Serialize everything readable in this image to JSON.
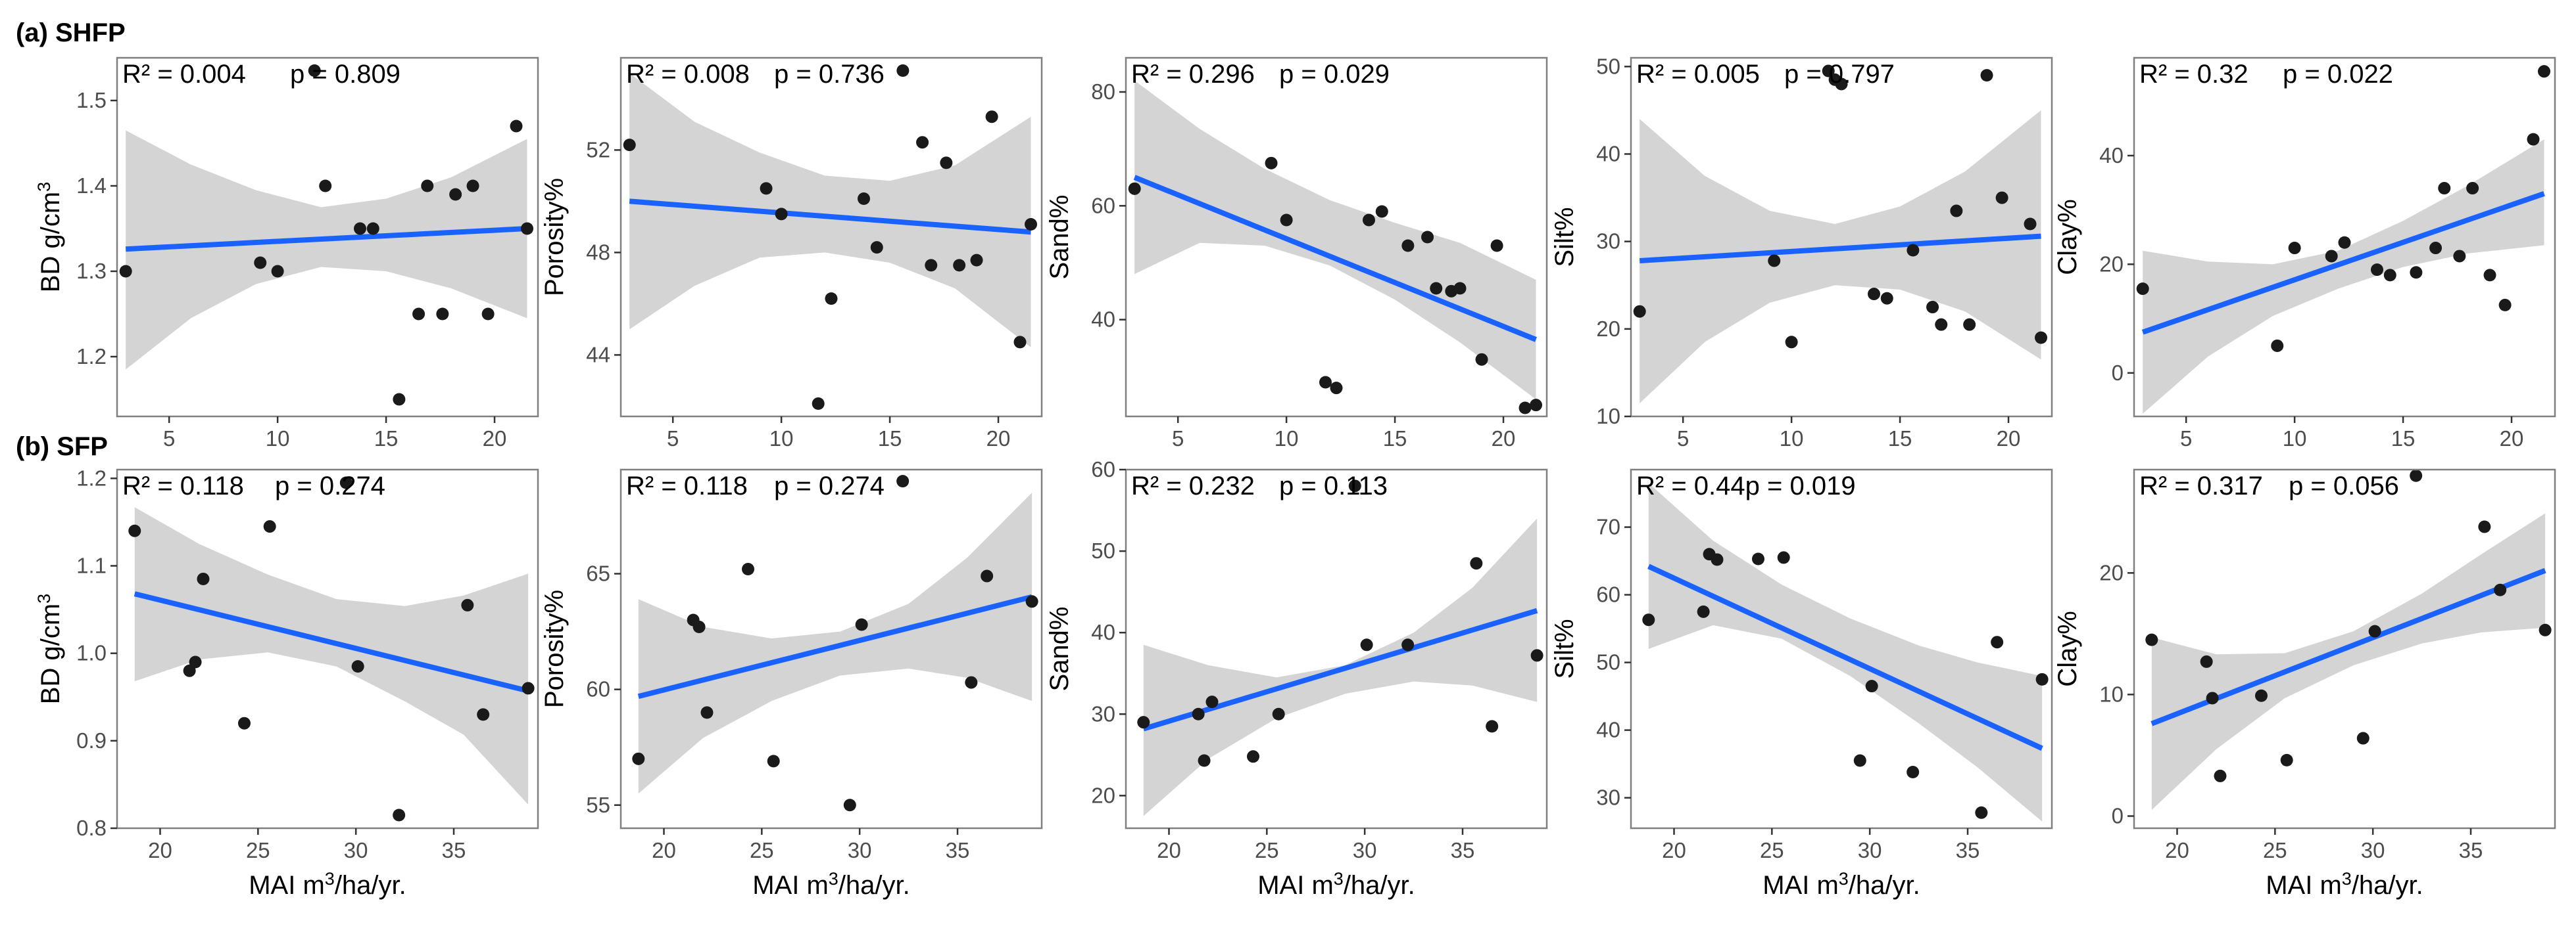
{
  "rows": [
    {
      "label": "(a) SHFP"
    },
    {
      "label": "(b) SFP"
    }
  ],
  "x_axis_label_prefix": "MAI m",
  "x_axis_label_sup": "3",
  "x_axis_label_suffix": "/ha/yr.",
  "chart_data": [
    {
      "type": "scatter",
      "row": 0,
      "col": 0,
      "ylabel": "BD g/cm",
      "ylabel_sup": "3",
      "r2_text": "R² = 0.004",
      "p_text": "p = 0.809",
      "xlim": [
        2.6,
        22.0
      ],
      "ylim": [
        1.13,
        1.55
      ],
      "xticks": [
        5,
        10,
        15,
        20
      ],
      "xtick_labels": [
        "5",
        "10",
        "15",
        "20"
      ],
      "yticks": [
        1.2,
        1.3,
        1.4,
        1.5
      ],
      "ytick_labels": [
        "1.2",
        "1.3",
        "1.4",
        "1.5"
      ],
      "fit": {
        "x": [
          3.0,
          21.5
        ],
        "y": [
          1.326,
          1.35
        ]
      },
      "band": {
        "x": [
          3.0,
          6.0,
          9.0,
          12.0,
          15.0,
          18.0,
          21.5
        ],
        "lower": [
          1.185,
          1.245,
          1.285,
          1.305,
          1.3,
          1.28,
          1.245
        ],
        "upper": [
          1.465,
          1.425,
          1.395,
          1.375,
          1.385,
          1.41,
          1.455
        ]
      },
      "points": {
        "x": [
          3.0,
          9.2,
          10.0,
          11.7,
          12.2,
          13.8,
          14.4,
          15.6,
          16.5,
          16.9,
          17.6,
          18.2,
          19.0,
          19.7,
          21.0,
          21.5
        ],
        "y": [
          1.3,
          1.31,
          1.3,
          1.535,
          1.4,
          1.35,
          1.35,
          1.15,
          1.25,
          1.4,
          1.25,
          1.39,
          1.4,
          1.25,
          1.47,
          1.35
        ]
      }
    },
    {
      "type": "scatter",
      "row": 0,
      "col": 1,
      "ylabel": "Porosity%",
      "ylabel_sup": "",
      "r2_text": "R² = 0.008",
      "p_text": "p = 0.736",
      "xlim": [
        2.6,
        22.0
      ],
      "ylim": [
        41.6,
        55.6
      ],
      "xticks": [
        5,
        10,
        15,
        20
      ],
      "xtick_labels": [
        "5",
        "10",
        "15",
        "20"
      ],
      "yticks": [
        44,
        48,
        52
      ],
      "ytick_labels": [
        "44",
        "48",
        "52"
      ],
      "fit": {
        "x": [
          3.0,
          21.5
        ],
        "y": [
          50.0,
          48.8
        ]
      },
      "band": {
        "x": [
          3.0,
          6.0,
          9.0,
          12.0,
          15.0,
          18.0,
          21.5
        ],
        "lower": [
          45.0,
          46.7,
          47.8,
          48.0,
          47.6,
          46.6,
          44.3
        ],
        "upper": [
          55.0,
          53.1,
          51.9,
          51.0,
          50.8,
          51.4,
          53.3
        ]
      },
      "points": {
        "x": [
          3.0,
          9.3,
          10.0,
          11.7,
          12.3,
          13.8,
          14.4,
          15.6,
          16.5,
          16.9,
          17.6,
          18.2,
          19.0,
          19.7,
          21.0,
          21.5
        ],
        "y": [
          52.2,
          50.5,
          49.5,
          42.1,
          46.2,
          50.1,
          48.2,
          55.1,
          52.3,
          47.5,
          51.5,
          47.5,
          47.7,
          53.3,
          44.5,
          49.1
        ]
      }
    },
    {
      "type": "scatter",
      "row": 0,
      "col": 2,
      "ylabel": "Sand%",
      "ylabel_sup": "",
      "r2_text": "R² = 0.296",
      "p_text": "p = 0.029",
      "xlim": [
        2.6,
        22.0
      ],
      "ylim": [
        23.0,
        86.0
      ],
      "xticks": [
        5,
        10,
        15,
        20
      ],
      "xtick_labels": [
        "5",
        "10",
        "15",
        "20"
      ],
      "yticks": [
        40,
        60,
        80
      ],
      "ytick_labels": [
        "40",
        "60",
        "80"
      ],
      "fit": {
        "x": [
          3.0,
          21.5
        ],
        "y": [
          65.0,
          36.5
        ]
      },
      "band": {
        "x": [
          3.0,
          6.0,
          9.0,
          12.0,
          15.0,
          18.0,
          21.5
        ],
        "lower": [
          48.0,
          53.5,
          53.0,
          49.5,
          43.5,
          36.0,
          26.0
        ],
        "upper": [
          82.0,
          73.5,
          66.5,
          61.0,
          57.0,
          53.5,
          47.0
        ]
      },
      "points": {
        "x": [
          3.0,
          9.3,
          10.0,
          11.8,
          12.3,
          13.8,
          14.4,
          15.6,
          16.5,
          16.9,
          17.6,
          18.0,
          19.0,
          19.7,
          21.0,
          21.5
        ],
        "y": [
          63.0,
          67.5,
          57.5,
          29.0,
          28.0,
          57.5,
          59.0,
          53.0,
          54.5,
          45.5,
          45.0,
          45.5,
          33.0,
          53.0,
          24.5,
          25.0
        ]
      }
    },
    {
      "type": "scatter",
      "row": 0,
      "col": 3,
      "ylabel": "Silt%",
      "ylabel_sup": "",
      "r2_text": "R² = 0.005",
      "p_text": "p = 0.797",
      "xlim": [
        2.6,
        22.0
      ],
      "ylim": [
        10.0,
        51.0
      ],
      "xticks": [
        5,
        10,
        15,
        20
      ],
      "xtick_labels": [
        "5",
        "10",
        "15",
        "20"
      ],
      "yticks": [
        10,
        20,
        30,
        40,
        50
      ],
      "ytick_labels": [
        "10",
        "20",
        "30",
        "40",
        "50"
      ],
      "fit": {
        "x": [
          3.0,
          21.5
        ],
        "y": [
          27.8,
          30.6
        ]
      },
      "band": {
        "x": [
          3.0,
          6.0,
          9.0,
          12.0,
          15.0,
          18.0,
          21.5
        ],
        "lower": [
          11.5,
          18.5,
          23.0,
          25.0,
          24.5,
          22.0,
          16.5
        ],
        "upper": [
          44.0,
          37.5,
          33.5,
          32.0,
          34.0,
          38.0,
          45.0
        ]
      },
      "points": {
        "x": [
          3.0,
          9.2,
          10.0,
          11.7,
          12.0,
          12.3,
          13.8,
          14.4,
          15.6,
          16.5,
          16.9,
          17.6,
          18.2,
          19.0,
          19.7,
          21.0,
          21.5
        ],
        "y": [
          22.0,
          27.8,
          18.5,
          49.5,
          48.5,
          48.0,
          24.0,
          23.5,
          29.0,
          22.5,
          20.5,
          33.5,
          20.5,
          49.0,
          35.0,
          32.0,
          19.0
        ]
      }
    },
    {
      "type": "scatter",
      "row": 0,
      "col": 4,
      "ylabel": "Clay%",
      "ylabel_sup": "",
      "r2_text": "R² = 0.32",
      "p_text": "p = 0.022",
      "xlim": [
        2.6,
        22.0
      ],
      "ylim": [
        -8.0,
        58.0
      ],
      "xticks": [
        5,
        10,
        15,
        20
      ],
      "xtick_labels": [
        "5",
        "10",
        "15",
        "20"
      ],
      "yticks": [
        0,
        20,
        40
      ],
      "ytick_labels": [
        "0",
        "20",
        "40"
      ],
      "fit": {
        "x": [
          3.0,
          21.5
        ],
        "y": [
          7.5,
          33.0
        ]
      },
      "band": {
        "x": [
          3.0,
          6.0,
          9.0,
          12.0,
          15.0,
          18.0,
          21.5
        ],
        "lower": [
          -7.5,
          3.0,
          10.5,
          15.5,
          19.5,
          22.0,
          23.5
        ],
        "upper": [
          22.5,
          20.5,
          20.0,
          22.5,
          28.0,
          34.5,
          43.0
        ]
      },
      "points": {
        "x": [
          3.0,
          9.2,
          10.0,
          11.7,
          12.3,
          13.8,
          14.4,
          15.6,
          16.5,
          16.9,
          17.6,
          18.2,
          19.0,
          19.7,
          21.0,
          21.5
        ],
        "y": [
          15.5,
          5.0,
          23.0,
          21.5,
          24.0,
          19.0,
          18.0,
          18.5,
          23.0,
          34.0,
          21.5,
          34.0,
          18.0,
          12.5,
          43.0,
          55.5
        ]
      }
    },
    {
      "type": "scatter",
      "row": 1,
      "col": 0,
      "ylabel": "BD g/cm",
      "ylabel_sup": "3",
      "r2_text": "R² = 0.118",
      "p_text": "p = 0.274",
      "xlim": [
        17.8,
        39.3
      ],
      "ylim": [
        0.8,
        1.21
      ],
      "xticks": [
        20,
        25,
        30,
        35
      ],
      "xtick_labels": [
        "20",
        "25",
        "30",
        "35"
      ],
      "yticks": [
        0.8,
        0.9,
        1.0,
        1.1,
        1.2
      ],
      "ytick_labels": [
        "0.8",
        "0.9",
        "1.0",
        "1.1",
        "1.2"
      ],
      "fit": {
        "x": [
          18.7,
          38.8
        ],
        "y": [
          1.068,
          0.957
        ]
      },
      "band": {
        "x": [
          18.7,
          22.0,
          25.5,
          29.0,
          32.5,
          35.5,
          38.8
        ],
        "lower": [
          0.968,
          0.993,
          1.001,
          0.985,
          0.945,
          0.907,
          0.827
        ],
        "upper": [
          1.167,
          1.125,
          1.09,
          1.062,
          1.054,
          1.066,
          1.091
        ]
      },
      "points": {
        "x": [
          18.7,
          21.5,
          21.8,
          22.2,
          24.3,
          25.6,
          29.5,
          30.1,
          32.2,
          35.7,
          36.5,
          38.8
        ],
        "y": [
          1.14,
          0.98,
          0.99,
          1.085,
          0.92,
          1.145,
          1.195,
          0.985,
          0.815,
          1.055,
          0.93,
          0.96
        ]
      }
    },
    {
      "type": "scatter",
      "row": 1,
      "col": 1,
      "ylabel": "Porosity%",
      "ylabel_sup": "",
      "r2_text": "R² = 0.118",
      "p_text": "p = 0.274",
      "xlim": [
        17.8,
        39.3
      ],
      "ylim": [
        54.0,
        69.5
      ],
      "xticks": [
        20,
        25,
        30,
        35
      ],
      "xtick_labels": [
        "20",
        "25",
        "30",
        "35"
      ],
      "yticks": [
        55,
        60,
        65
      ],
      "ytick_labels": [
        "55",
        "60",
        "65"
      ],
      "fit": {
        "x": [
          18.7,
          38.8
        ],
        "y": [
          59.7,
          64.0
        ]
      },
      "band": {
        "x": [
          18.7,
          22.0,
          25.5,
          29.0,
          32.5,
          35.5,
          38.8
        ],
        "lower": [
          55.5,
          57.9,
          59.5,
          60.6,
          60.9,
          60.5,
          59.5
        ],
        "upper": [
          63.9,
          62.7,
          62.2,
          62.5,
          63.7,
          65.7,
          68.5
        ]
      },
      "points": {
        "x": [
          18.7,
          21.5,
          21.8,
          22.2,
          24.3,
          25.6,
          29.5,
          30.1,
          32.2,
          35.7,
          36.5,
          38.8
        ],
        "y": [
          57.0,
          63.0,
          62.7,
          59.0,
          65.2,
          56.9,
          55.0,
          62.8,
          69.0,
          60.3,
          64.9,
          63.8
        ]
      }
    },
    {
      "type": "scatter",
      "row": 1,
      "col": 2,
      "ylabel": "Sand%",
      "ylabel_sup": "",
      "r2_text": "R² = 0.232",
      "p_text": "p = 0.113",
      "xlim": [
        17.8,
        39.3
      ],
      "ylim": [
        16.0,
        60.0
      ],
      "xticks": [
        20,
        25,
        30,
        35
      ],
      "xtick_labels": [
        "20",
        "25",
        "30",
        "35"
      ],
      "yticks": [
        20,
        30,
        40,
        50,
        60
      ],
      "ytick_labels": [
        "20",
        "30",
        "40",
        "50",
        "60"
      ],
      "fit": {
        "x": [
          18.7,
          38.8
        ],
        "y": [
          28.2,
          42.7
        ]
      },
      "band": {
        "x": [
          18.7,
          22.0,
          25.5,
          29.0,
          32.5,
          35.5,
          38.8
        ],
        "lower": [
          17.5,
          24.5,
          29.5,
          32.5,
          34.0,
          33.5,
          31.5
        ],
        "upper": [
          38.5,
          36.0,
          34.5,
          36.0,
          40.0,
          45.5,
          54.0
        ]
      },
      "points": {
        "x": [
          18.7,
          21.5,
          21.8,
          22.2,
          24.3,
          25.6,
          29.5,
          30.1,
          32.2,
          35.7,
          36.5,
          38.8
        ],
        "y": [
          29.0,
          30.0,
          24.3,
          31.5,
          24.8,
          30.0,
          58.0,
          38.5,
          38.5,
          48.5,
          28.5,
          37.2
        ]
      }
    },
    {
      "type": "scatter",
      "row": 1,
      "col": 3,
      "ylabel": "Silt%",
      "ylabel_sup": "",
      "r2_text": "R² = 0.44p = 0.019",
      "p_text": "",
      "xlim": [
        17.8,
        39.3
      ],
      "ylim": [
        25.5,
        78.5
      ],
      "xticks": [
        20,
        25,
        30,
        35
      ],
      "xtick_labels": [
        "20",
        "25",
        "30",
        "35"
      ],
      "yticks": [
        30,
        40,
        50,
        60,
        70
      ],
      "ytick_labels": [
        "30",
        "40",
        "50",
        "60",
        "70"
      ],
      "fit": {
        "x": [
          18.7,
          38.8
        ],
        "y": [
          64.2,
          37.3
        ]
      },
      "band": {
        "x": [
          18.7,
          22.0,
          25.5,
          29.0,
          32.5,
          35.5,
          38.8
        ],
        "lower": [
          52.0,
          55.5,
          53.5,
          48.0,
          41.0,
          34.5,
          26.5
        ],
        "upper": [
          76.5,
          68.0,
          61.5,
          56.5,
          52.5,
          50.0,
          48.0
        ]
      },
      "points": {
        "x": [
          18.7,
          21.5,
          21.8,
          22.2,
          24.3,
          25.6,
          29.5,
          30.1,
          32.2,
          35.7,
          36.5,
          38.8
        ],
        "y": [
          56.3,
          57.5,
          66.0,
          65.2,
          65.3,
          65.5,
          35.5,
          46.5,
          33.8,
          27.8,
          53.0,
          47.5
        ]
      }
    },
    {
      "type": "scatter",
      "row": 1,
      "col": 4,
      "ylabel": "Clay%",
      "ylabel_sup": "",
      "r2_text": "R² = 0.317",
      "p_text": "p = 0.056",
      "xlim": [
        17.8,
        39.3
      ],
      "ylim": [
        -1.0,
        28.5
      ],
      "xticks": [
        20,
        25,
        30,
        35
      ],
      "xtick_labels": [
        "20",
        "25",
        "30",
        "35"
      ],
      "yticks": [
        0,
        10,
        20
      ],
      "ytick_labels": [
        "0",
        "10",
        "20"
      ],
      "fit": {
        "x": [
          18.7,
          38.8
        ],
        "y": [
          7.6,
          20.2
        ]
      },
      "band": {
        "x": [
          18.7,
          22.0,
          25.5,
          29.0,
          32.5,
          35.5,
          38.8
        ],
        "lower": [
          0.5,
          5.5,
          9.7,
          12.4,
          14.2,
          15.1,
          15.5
        ],
        "upper": [
          14.7,
          13.3,
          13.4,
          15.2,
          18.3,
          21.5,
          24.9
        ]
      },
      "points": {
        "x": [
          18.7,
          21.5,
          21.8,
          22.2,
          24.3,
          25.6,
          29.5,
          30.1,
          32.2,
          35.7,
          36.5,
          38.8
        ],
        "y": [
          14.5,
          12.7,
          9.7,
          3.3,
          9.9,
          4.6,
          6.4,
          15.2,
          28.0,
          23.8,
          18.6,
          15.3
        ]
      }
    }
  ]
}
